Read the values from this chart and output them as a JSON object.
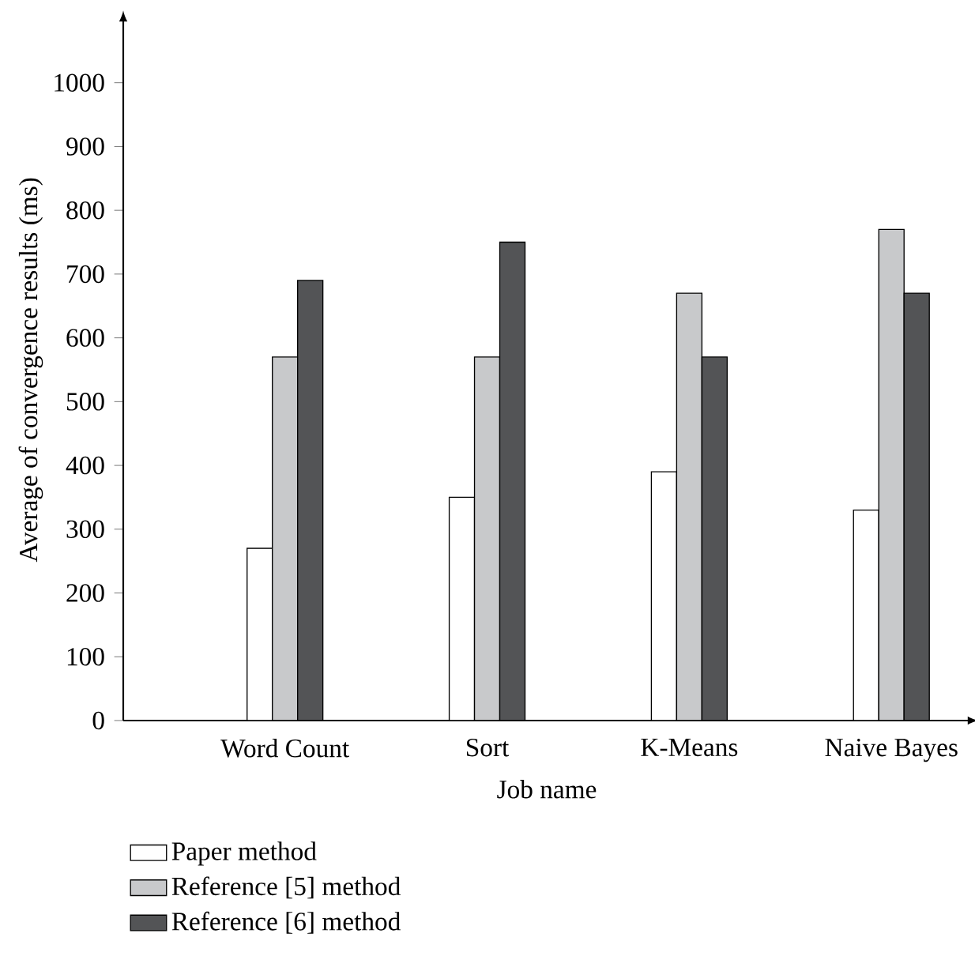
{
  "chart_data": {
    "type": "bar",
    "xlabel": "Job name",
    "ylabel": "Average of convergence results (ms)",
    "categories": [
      "Word Count",
      "Sort",
      "K-Means",
      "Naive Bayes"
    ],
    "series": [
      {
        "name": "Paper method",
        "color": "#ffffff",
        "values": [
          270,
          350,
          390,
          330
        ]
      },
      {
        "name": "Reference [5] method",
        "color": "#c8c9cb",
        "values": [
          570,
          570,
          670,
          770
        ]
      },
      {
        "name": "Reference [6] method",
        "color": "#535456",
        "values": [
          690,
          750,
          570,
          670
        ]
      }
    ],
    "ylim": [
      0,
      1100
    ],
    "yticks": [
      0,
      100,
      200,
      300,
      400,
      500,
      600,
      700,
      800,
      900,
      1000
    ],
    "grid": false,
    "legend": "bottom"
  }
}
